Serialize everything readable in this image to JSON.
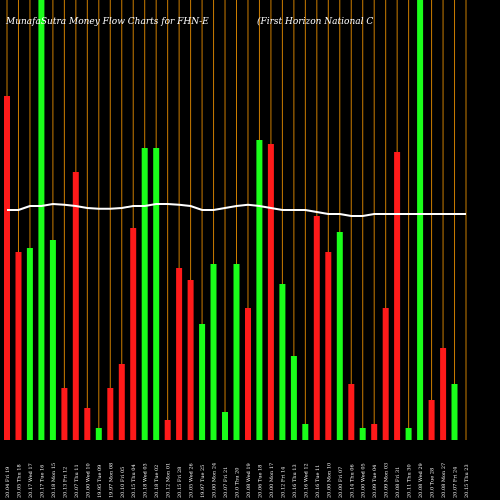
{
  "chart_data": {
    "type": "bar",
    "title": "MunafaSutra  Money Flow  Charts for FHN-E",
    "subtitle": "(First Horizon  National C",
    "categories": [
      "Fri 19 Dec 25",
      "Thu 18 Dec 25",
      "Wed 17 Dec 25",
      "Tue 16 Dec 25",
      "Mon 15 Dec 25",
      "Fri 12 Dec 25",
      "Thu 11 Dec 25",
      "Wed 10 Dec 25",
      "Tue 09 Dec 25",
      "Mon 08 Dec 25",
      "Fri 05 Dec 25",
      "Thu 04 Dec 25",
      "Wed 03 Dec 25",
      "Tue 02 Dec 25",
      "Mon 01 Dec 25",
      "Fri 28 Nov 25",
      "Wed 26 Nov 25",
      "Tue 25 Nov 25",
      "Mon 24 Nov 25",
      "Fri 21 Nov 25",
      "Thu 20 Nov 25",
      "Wed 19 Nov 25",
      "Tue 18 Nov 25",
      "Mon 17 Nov 25",
      "Fri 14 Nov 25",
      "Thu 13 Nov 25",
      "Wed 12 Nov 25",
      "Tue 11 Nov 25",
      "Mon 10 Nov 25",
      "Fri 07 Nov 25",
      "Thu 06 Nov 25",
      "Wed 05 Nov 25",
      "Tue 04 Nov 25",
      "Mon 03 Nov 25",
      "Fri 31 Oct 25",
      "Thu 30 Oct 25",
      "Wed 29 Oct 25",
      "Tue 28 Oct 25",
      "Mon 27 Oct 25",
      "Fri 24 Oct 25",
      "Thu 23 Oct 25"
    ],
    "x_labels": [
      "20.04  Fri 19",
      "20.05  Thu 18",
      "20.17  Wed 17",
      "20.17  Tue 16",
      "20.18  Mon 15",
      "20.13  Fri 12",
      "20.07  Thu 11",
      "20.00  Wed 10",
      "19.95  Tue 09",
      "19.97  Mon 08",
      "20.10  Fri 05",
      "20.15  Thu 04",
      "20.18  Wed 03",
      "20.18  Tue 02",
      "20.12  Mon 01",
      "20.15  Fri 28",
      "20.05  Wed 26",
      "19.97  Tue 25",
      "20.00  Mon 24",
      "20.07  Fri 21",
      "20.0  Thu 20",
      "20.08  Wed 19",
      "20.06  Tue 18",
      "20.00  Mon 17",
      "20.12  Fri 14",
      "20.16  Thu 13",
      "20.16  Wed 12",
      "20.16  Tue 11",
      "20.00  Mon 10",
      "20.00  Fri 07",
      "20.14  Thu 06",
      "20.00  Wed 05",
      "20.09  Tue 04",
      "20.09  Mon 03",
      "20.08  Fri 31",
      "20.11  Thu 30",
      "20.08  Wed 29",
      "20.0  Tue 28",
      "20.08  Mon 27",
      "20.07  Fri 24",
      "20.15  Thu 23"
    ],
    "values": [
      0.86,
      0.47,
      0.48,
      1.1,
      0.5,
      0.13,
      0.67,
      0.08,
      0.03,
      0.13,
      0.19,
      0.53,
      0.73,
      0.73,
      0.05,
      0.43,
      0.4,
      0.29,
      0.44,
      0.07,
      0.44,
      0.33,
      0.75,
      0.74,
      0.39,
      0.21,
      0.04,
      0.56,
      0.47,
      0.52,
      0.14,
      0.03,
      0.04,
      0.33,
      0.72,
      0.03,
      1.1,
      0.1,
      0.23,
      0.14,
      0.0
    ],
    "colors": [
      "red",
      "red",
      "green",
      "green",
      "green",
      "red",
      "red",
      "red",
      "green",
      "red",
      "red",
      "red",
      "green",
      "green",
      "red",
      "red",
      "red",
      "green",
      "green",
      "green",
      "green",
      "red",
      "green",
      "red",
      "green",
      "green",
      "green",
      "red",
      "red",
      "green",
      "red",
      "green",
      "red",
      "red",
      "red",
      "green",
      "green",
      "red",
      "red",
      "green",
      "green"
    ],
    "price_line": [
      0.575,
      0.575,
      0.585,
      0.585,
      0.59,
      0.588,
      0.585,
      0.58,
      0.578,
      0.578,
      0.58,
      0.585,
      0.585,
      0.59,
      0.59,
      0.588,
      0.585,
      0.575,
      0.575,
      0.58,
      0.585,
      0.588,
      0.585,
      0.58,
      0.575,
      0.575,
      0.575,
      0.57,
      0.565,
      0.565,
      0.56,
      0.56,
      0.565,
      0.565,
      0.565,
      0.565,
      0.565,
      0.565,
      0.565,
      0.565,
      0.565
    ],
    "ylim": [
      0,
      1.1
    ],
    "colors_map": {
      "red": "#ff1a1a",
      "green": "#1aff1a",
      "orange": "#c97b00",
      "white": "#ffffff"
    },
    "grid": "vertical",
    "legend": "none"
  }
}
